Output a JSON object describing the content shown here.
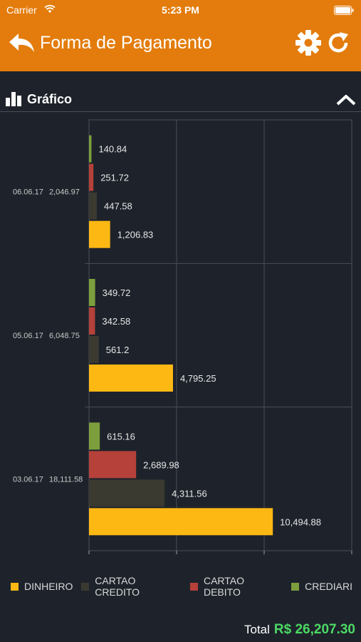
{
  "status_bar": {
    "carrier": "Carrier",
    "time": "5:23 PM"
  },
  "header": {
    "title": "Forma de Pagamento"
  },
  "section": {
    "title": "Gráfico"
  },
  "colors": {
    "accent": "#e37c0c",
    "background": "#1e232b",
    "dinheiro": "#fdb813",
    "cartao_credito": "#3b3a31",
    "cartao_debito": "#b5413a",
    "crediario": "#7d9e3c",
    "total": "#4cd964"
  },
  "chart_data": {
    "type": "bar",
    "orientation": "horizontal",
    "categories": [
      {
        "date": "06.06.17",
        "total": "2,046.97"
      },
      {
        "date": "05.06.17",
        "total": "6,048.75"
      },
      {
        "date": "03.06.17",
        "total": "18,111.58"
      }
    ],
    "series": [
      {
        "name": "DINHEIRO",
        "color": "#fdb813",
        "values": [
          1206.83,
          4795.25,
          10494.88
        ],
        "labels": [
          "1,206.83",
          "4,795.25",
          "10,494.88"
        ]
      },
      {
        "name": "CARTAO CREDITO",
        "color": "#3b3a31",
        "values": [
          447.58,
          561.2,
          4311.56
        ],
        "labels": [
          "447.58",
          "561.2",
          "4,311.56"
        ]
      },
      {
        "name": "CARTAO DEBITO",
        "color": "#b5413a",
        "values": [
          251.72,
          342.58,
          2689.98
        ],
        "labels": [
          "251.72",
          "342.58",
          "2,689.98"
        ]
      },
      {
        "name": "CREDIARI",
        "color": "#7d9e3c",
        "values": [
          140.84,
          349.72,
          615.16
        ],
        "labels": [
          "140.84",
          "349.72",
          "615.16"
        ]
      }
    ],
    "xticks": [
      0,
      5000,
      10000,
      15000
    ],
    "xlim": [
      0,
      15000
    ],
    "grid": true,
    "legend": "bottom"
  },
  "footer": {
    "total_label": "Total",
    "total_value": "R$ 26,207.30"
  }
}
